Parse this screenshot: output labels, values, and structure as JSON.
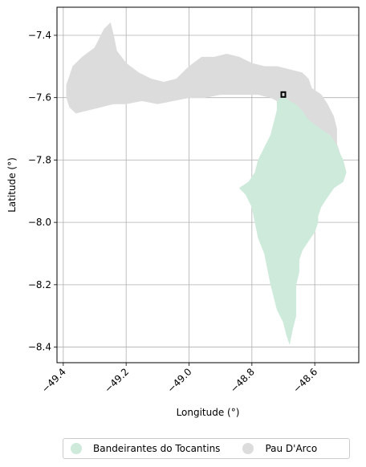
{
  "chart_data": {
    "type": "map",
    "xlabel": "Longitude (°)",
    "ylabel": "Latitude (°)",
    "xlim": [
      -49.42,
      -48.46
    ],
    "ylim": [
      -8.45,
      -7.31
    ],
    "xticks": [
      -49.4,
      -49.2,
      -49.0,
      -48.8,
      -48.6
    ],
    "yticks": [
      -7.4,
      -7.6,
      -7.8,
      -8.0,
      -8.2,
      -8.4
    ],
    "xtick_labels": [
      "−49.4",
      "−49.2",
      "−49.0",
      "−48.8",
      "−48.6"
    ],
    "ytick_labels": [
      "−7.4",
      "−7.6",
      "−7.8",
      "−8.0",
      "−8.2",
      "−8.4"
    ],
    "grid": true,
    "legend_position": "bottom-center",
    "series": [
      {
        "name": "Bandeirantes do Tocantins",
        "color": "#cdeadb",
        "polygon": [
          [
            -48.71,
            -7.6
          ],
          [
            -48.69,
            -7.6
          ],
          [
            -48.68,
            -7.61
          ],
          [
            -48.66,
            -7.62
          ],
          [
            -48.64,
            -7.64
          ],
          [
            -48.62,
            -7.67
          ],
          [
            -48.58,
            -7.7
          ],
          [
            -48.55,
            -7.72
          ],
          [
            -48.53,
            -7.75
          ],
          [
            -48.52,
            -7.78
          ],
          [
            -48.51,
            -7.8
          ],
          [
            -48.5,
            -7.84
          ],
          [
            -48.51,
            -7.87
          ],
          [
            -48.54,
            -7.89
          ],
          [
            -48.56,
            -7.92
          ],
          [
            -48.58,
            -7.95
          ],
          [
            -48.59,
            -7.98
          ],
          [
            -48.59,
            -8.0
          ],
          [
            -48.6,
            -8.03
          ],
          [
            -48.62,
            -8.06
          ],
          [
            -48.64,
            -8.09
          ],
          [
            -48.65,
            -8.12
          ],
          [
            -48.65,
            -8.16
          ],
          [
            -48.66,
            -8.2
          ],
          [
            -48.66,
            -8.25
          ],
          [
            -48.66,
            -8.3
          ],
          [
            -48.67,
            -8.34
          ],
          [
            -48.68,
            -8.39
          ],
          [
            -48.69,
            -8.36
          ],
          [
            -48.7,
            -8.32
          ],
          [
            -48.72,
            -8.28
          ],
          [
            -48.73,
            -8.24
          ],
          [
            -48.74,
            -8.2
          ],
          [
            -48.75,
            -8.15
          ],
          [
            -48.76,
            -8.1
          ],
          [
            -48.78,
            -8.05
          ],
          [
            -48.79,
            -8.0
          ],
          [
            -48.8,
            -7.95
          ],
          [
            -48.82,
            -7.91
          ],
          [
            -48.84,
            -7.89
          ],
          [
            -48.81,
            -7.87
          ],
          [
            -48.79,
            -7.84
          ],
          [
            -48.78,
            -7.8
          ],
          [
            -48.76,
            -7.76
          ],
          [
            -48.74,
            -7.72
          ],
          [
            -48.73,
            -7.68
          ],
          [
            -48.72,
            -7.64
          ],
          [
            -48.72,
            -7.61
          ]
        ]
      },
      {
        "name": "Pau D'Arco",
        "color": "#dcdcdc",
        "polygon": [
          [
            -49.39,
            -7.56
          ],
          [
            -49.37,
            -7.5
          ],
          [
            -49.34,
            -7.47
          ],
          [
            -49.3,
            -7.44
          ],
          [
            -49.27,
            -7.38
          ],
          [
            -49.25,
            -7.36
          ],
          [
            -49.24,
            -7.4
          ],
          [
            -49.23,
            -7.45
          ],
          [
            -49.2,
            -7.49
          ],
          [
            -49.16,
            -7.52
          ],
          [
            -49.12,
            -7.54
          ],
          [
            -49.08,
            -7.55
          ],
          [
            -49.04,
            -7.54
          ],
          [
            -49.0,
            -7.5
          ],
          [
            -48.96,
            -7.47
          ],
          [
            -48.92,
            -7.47
          ],
          [
            -48.88,
            -7.46
          ],
          [
            -48.84,
            -7.47
          ],
          [
            -48.8,
            -7.49
          ],
          [
            -48.76,
            -7.5
          ],
          [
            -48.72,
            -7.5
          ],
          [
            -48.68,
            -7.51
          ],
          [
            -48.64,
            -7.52
          ],
          [
            -48.62,
            -7.54
          ],
          [
            -48.61,
            -7.57
          ],
          [
            -48.58,
            -7.59
          ],
          [
            -48.56,
            -7.62
          ],
          [
            -48.54,
            -7.66
          ],
          [
            -48.53,
            -7.7
          ],
          [
            -48.53,
            -7.75
          ],
          [
            -48.52,
            -7.78
          ],
          [
            -48.53,
            -7.75
          ],
          [
            -48.55,
            -7.72
          ],
          [
            -48.58,
            -7.7
          ],
          [
            -48.62,
            -7.67
          ],
          [
            -48.64,
            -7.64
          ],
          [
            -48.66,
            -7.62
          ],
          [
            -48.68,
            -7.61
          ],
          [
            -48.69,
            -7.6
          ],
          [
            -48.71,
            -7.6
          ],
          [
            -48.72,
            -7.61
          ],
          [
            -48.74,
            -7.6
          ],
          [
            -48.78,
            -7.59
          ],
          [
            -48.82,
            -7.59
          ],
          [
            -48.86,
            -7.59
          ],
          [
            -48.9,
            -7.59
          ],
          [
            -48.95,
            -7.6
          ],
          [
            -49.0,
            -7.6
          ],
          [
            -49.05,
            -7.61
          ],
          [
            -49.1,
            -7.62
          ],
          [
            -49.15,
            -7.61
          ],
          [
            -49.2,
            -7.62
          ],
          [
            -49.24,
            -7.62
          ],
          [
            -49.28,
            -7.63
          ],
          [
            -49.32,
            -7.64
          ],
          [
            -49.36,
            -7.65
          ],
          [
            -49.38,
            -7.63
          ],
          [
            -49.39,
            -7.6
          ]
        ]
      }
    ],
    "marker": {
      "type": "square-outline",
      "lon": -48.7,
      "lat": -7.59,
      "color": "#000000"
    }
  },
  "legend": {
    "items": [
      {
        "label": "Bandeirantes do Tocantins",
        "color": "#cdeadb"
      },
      {
        "label": "Pau D'Arco",
        "color": "#dcdcdc"
      }
    ]
  }
}
